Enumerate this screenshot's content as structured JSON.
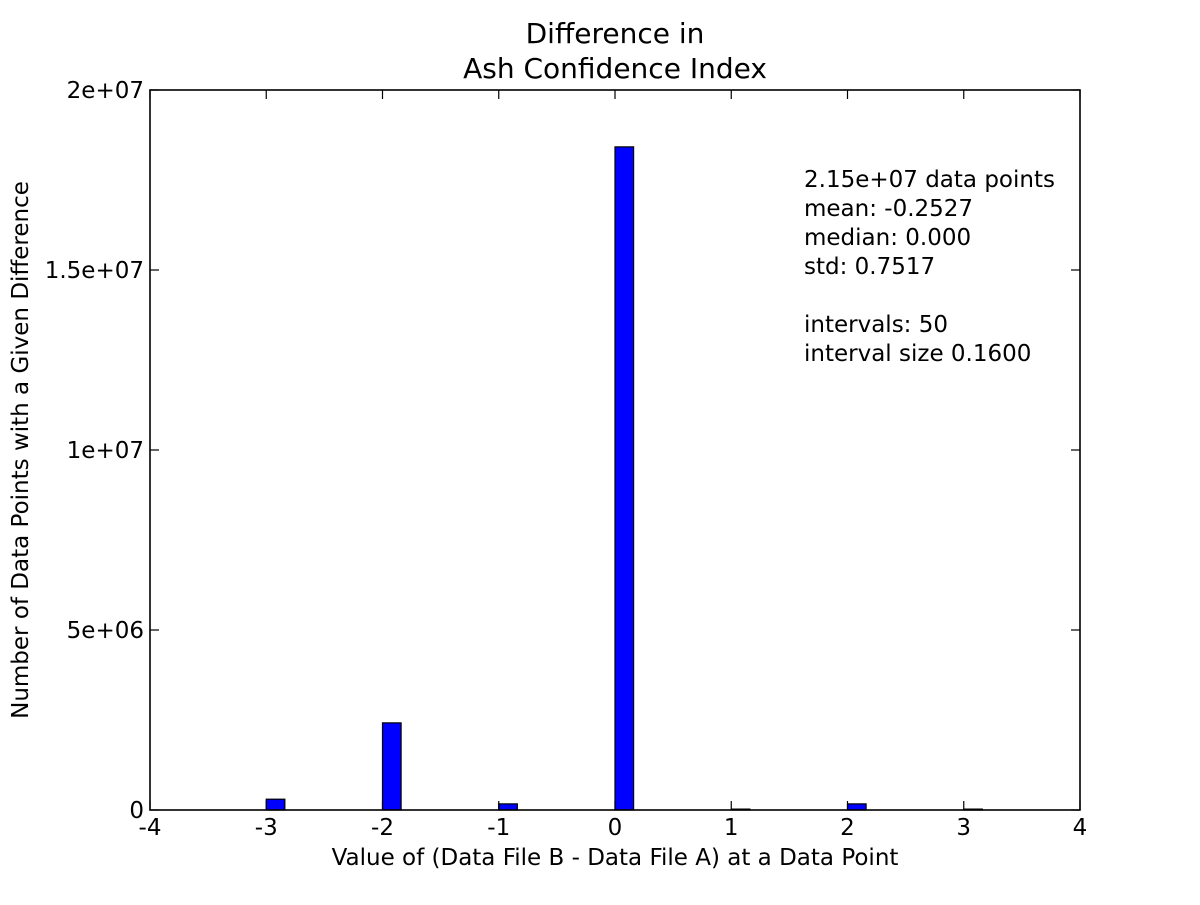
{
  "chart_data": {
    "type": "bar",
    "title_lines": [
      "Difference in",
      "Ash Confidence Index"
    ],
    "xlabel": "Value of (Data File B - Data File A) at a Data Point",
    "ylabel": "Number of Data Points with a Given Difference",
    "xlim": [
      -4,
      4
    ],
    "ylim": [
      0,
      20000000
    ],
    "x_ticks": [
      -4,
      -3,
      -2,
      -1,
      0,
      1,
      2,
      3,
      4
    ],
    "x_tick_labels": [
      "-4",
      "-3",
      "-2",
      "-1",
      "0",
      "1",
      "2",
      "3",
      "4"
    ],
    "y_ticks": [
      0,
      5000000,
      10000000,
      15000000,
      20000000
    ],
    "y_tick_labels": [
      "0",
      "5e+06",
      "1e+07",
      "1.5e+07",
      "2e+07"
    ],
    "grid": false,
    "bar_color": "#0000ff",
    "bar_width": 0.16,
    "bars": [
      {
        "x": -3,
        "value": 300000
      },
      {
        "x": -2,
        "value": 2420000
      },
      {
        "x": -1,
        "value": 170000
      },
      {
        "x": 0,
        "value": 18420000
      },
      {
        "x": 1,
        "value": 25000
      },
      {
        "x": 2,
        "value": 170000
      },
      {
        "x": 3,
        "value": 25000
      }
    ],
    "annotations": [
      "2.15e+07 data points",
      "mean: -0.2527",
      "median: 0.000",
      "std: 0.7517",
      "",
      "intervals: 50",
      "interval size 0.1600"
    ]
  }
}
